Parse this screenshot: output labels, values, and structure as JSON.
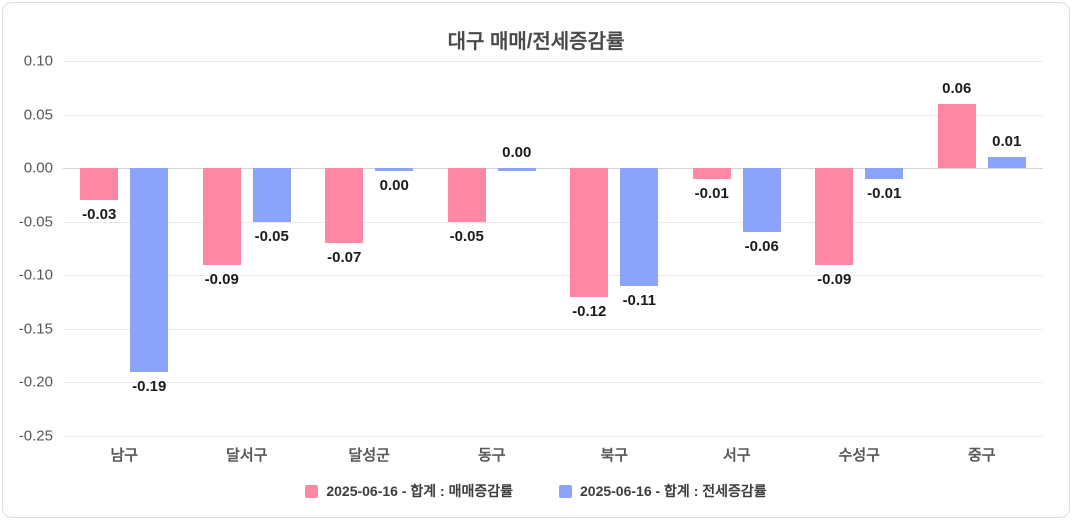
{
  "title": "대구 매매/전세증감률",
  "chart_data": {
    "type": "bar",
    "title": "대구 매매/전세증감률",
    "categories": [
      "남구",
      "달서구",
      "달성군",
      "동구",
      "북구",
      "서구",
      "수성구",
      "중구"
    ],
    "series": [
      {
        "key": "maemae",
        "name": "2025-06-16 - 합계 : 매매증감률",
        "color": "#FF87A6",
        "values": [
          -0.03,
          -0.09,
          -0.07,
          -0.05,
          -0.12,
          -0.01,
          -0.09,
          0.06
        ],
        "labels": [
          "-0.03",
          "-0.09",
          "-0.07",
          "-0.05",
          "-0.12",
          "-0.01",
          "-0.09",
          "0.06"
        ],
        "label_side": [
          "below",
          "below",
          "below",
          "below",
          "below",
          "below",
          "below",
          "above"
        ]
      },
      {
        "key": "jeonse",
        "name": "2025-06-16 - 합계 : 전세증감률",
        "color": "#8BA4F9",
        "values": [
          -0.19,
          -0.05,
          0,
          0,
          -0.11,
          -0.06,
          -0.01,
          0.01
        ],
        "labels": [
          "-0.19",
          "-0.05",
          "0.00",
          "0.00",
          "-0.11",
          "-0.06",
          "-0.01",
          "0.01"
        ],
        "label_side": [
          "below",
          "below",
          "below",
          "above",
          "below",
          "below",
          "below",
          "above"
        ]
      }
    ],
    "yticks": [
      {
        "value": 0.1,
        "label": "0.10"
      },
      {
        "value": 0.05,
        "label": "0.05"
      },
      {
        "value": 0.0,
        "label": "0.00"
      },
      {
        "value": -0.05,
        "label": "-0.05"
      },
      {
        "value": -0.1,
        "label": "-0.10"
      },
      {
        "value": -0.15,
        "label": "-0.15"
      },
      {
        "value": -0.2,
        "label": "-0.20"
      },
      {
        "value": -0.25,
        "label": "-0.25"
      }
    ],
    "ylim": [
      -0.25,
      0.1
    ],
    "grid": "horizontal",
    "legend_position": "bottom"
  }
}
